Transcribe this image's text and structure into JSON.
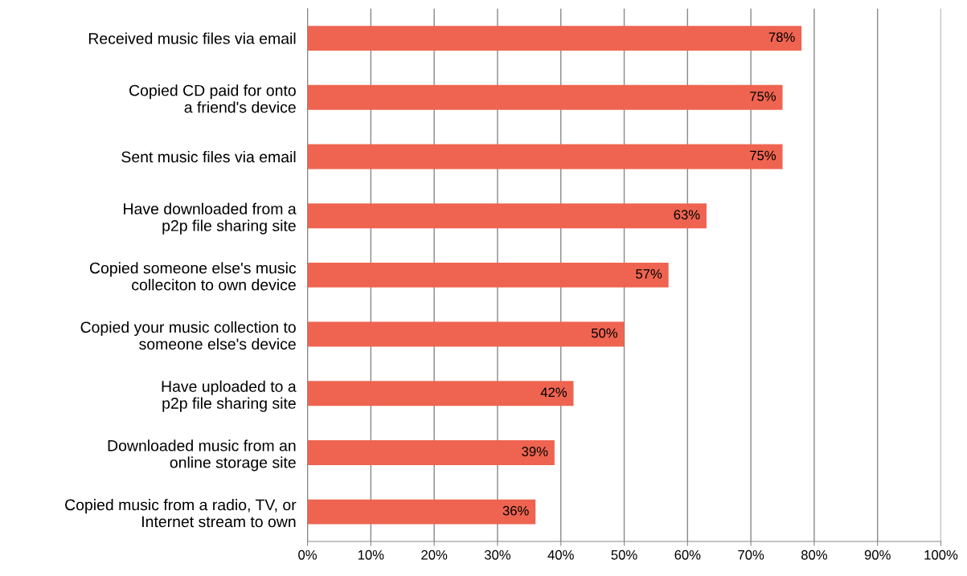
{
  "chart_data": {
    "type": "bar",
    "orientation": "horizontal",
    "categories": [
      "Received music files via email",
      "Copied CD paid for onto\na friend's device",
      "Sent music files via email",
      "Have downloaded from a\np2p file sharing site",
      "Copied someone else's music\ncolleciton to own device",
      "Copied your music collection to\nsomeone else's device",
      "Have uploaded to a\np2p file sharing site",
      "Downloaded music from an\nonline storage site",
      "Copied music from a radio, TV, or\nInternet stream to own"
    ],
    "values": [
      78,
      75,
      75,
      63,
      57,
      50,
      42,
      39,
      36
    ],
    "value_labels": [
      "78%",
      "75%",
      "75%",
      "63%",
      "57%",
      "50%",
      "42%",
      "39%",
      "36%"
    ],
    "color": "#ee6450",
    "xlim": [
      0,
      100
    ],
    "xticks": [
      {
        "value": 0,
        "label": "0%"
      },
      {
        "value": 10,
        "label": "10%"
      },
      {
        "value": 20,
        "label": "20%"
      },
      {
        "value": 30,
        "label": "30%"
      },
      {
        "value": 40,
        "label": "40%"
      },
      {
        "value": 50,
        "label": "50%"
      },
      {
        "value": 60,
        "label": "60%"
      },
      {
        "value": 70,
        "label": "70%"
      },
      {
        "value": 80,
        "label": "80%"
      },
      {
        "value": 90,
        "label": "90%"
      },
      {
        "value": 100,
        "label": "100%"
      }
    ],
    "grid": "x",
    "legend": false
  }
}
